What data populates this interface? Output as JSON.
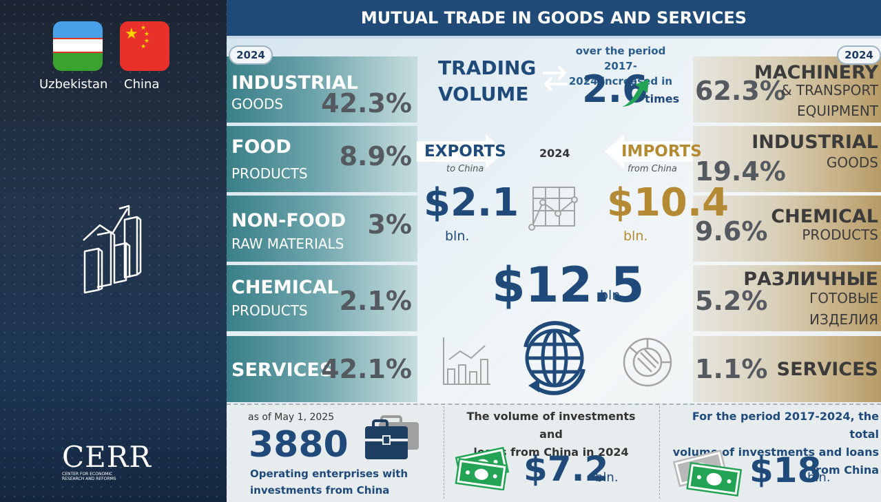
{
  "header": {
    "title": "MUTUAL TRADE IN GOODS AND SERVICES"
  },
  "countries": {
    "left": "Uzbekistan",
    "right": "China"
  },
  "logo": {
    "name": "CERR",
    "subtitle_line1": "CENTER FOR ECONOMIC",
    "subtitle_line2": "RESEARCH AND REFORMS"
  },
  "exports_structure": {
    "year": "2024",
    "items": [
      {
        "name": "INDUSTRIAL",
        "sub": "GOODS",
        "share": "42.3%"
      },
      {
        "name": "FOOD",
        "sub": "PRODUCTS",
        "share": "8.9%"
      },
      {
        "name": "NON-FOOD",
        "sub": "RAW MATERIALS",
        "share": "3%"
      },
      {
        "name": "CHEMICAL",
        "sub": "PRODUCTS",
        "share": "2.1%"
      },
      {
        "name": "SERVICES",
        "sub": "",
        "share": "42.1%"
      }
    ]
  },
  "imports_structure": {
    "year": "2024",
    "items": [
      {
        "name": "MACHINERY",
        "sub1": "& TRANSPORT",
        "sub2": "EQUIPMENT",
        "share": "62.3%"
      },
      {
        "name": "INDUSTRIAL",
        "sub1": "GOODS",
        "sub2": "",
        "share": "19.4%"
      },
      {
        "name": "CHEMICAL",
        "sub1": "PRODUCTS",
        "sub2": "",
        "share": "9.6%"
      },
      {
        "name": "РАЗЛИЧНЫЕ",
        "sub1": "ГОТОВЫЕ",
        "sub2": "ИЗДЕЛИЯ",
        "share": "5.2%"
      },
      {
        "name": "SERVICES",
        "sub1": "",
        "sub2": "",
        "share": "1.1%"
      }
    ]
  },
  "trading": {
    "title_line1": "TRADING",
    "title_line2": "VOLUME",
    "period_line1": "over the period 2017-",
    "period_line2": "2024 increased in",
    "multiplier": "2.6",
    "multiplier_unit": "times",
    "year": "2024",
    "exports_label": "EXPORTS",
    "exports_sub": "to China",
    "exports_value": "$2.1",
    "exports_unit": "bln.",
    "imports_label": "IMPORTS",
    "imports_sub": "from China",
    "imports_value": "$10.4",
    "imports_unit": "bln.",
    "total_value": "$12.5",
    "total_unit": "bln."
  },
  "enterprises": {
    "as_of": "as of May 1, 2025",
    "count": "3880",
    "text_line1": "Operating enterprises with",
    "text_line2": "investments from China"
  },
  "investments_2024": {
    "text_line1": "The volume of investments and",
    "text_line2": "loans from China in 2024",
    "value": "$7.2",
    "unit": "bln."
  },
  "investments_2017_2024": {
    "text_line1": "For the period 2017-2024, the total",
    "text_line2": "volume of investments and loans",
    "text_line3": "from China",
    "value": "$18",
    "unit": "bln."
  },
  "icons": [
    "uzbekistan-flag",
    "china-flag",
    "growth-chart-icon",
    "swap-arrows-icon",
    "up-arrow-icon",
    "network-chart-icon",
    "bar-line-chart-icon",
    "globe-icon",
    "pie-chart-icon",
    "briefcase-icon",
    "money-icon"
  ],
  "colors": {
    "navy": "#1f4a7a",
    "gold": "#b58a34",
    "teal": "#3a7f88",
    "green": "#23a455"
  }
}
